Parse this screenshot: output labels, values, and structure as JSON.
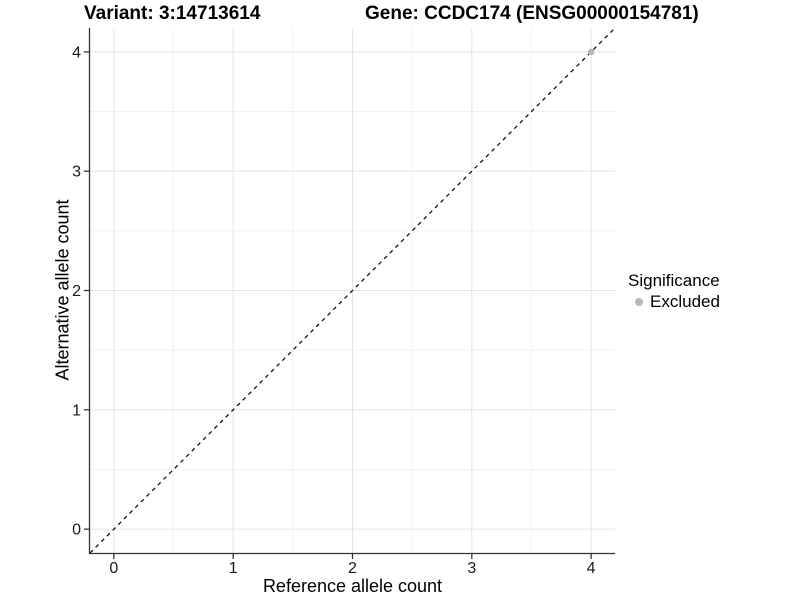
{
  "titles": {
    "variant": "Variant: 3:14713614",
    "gene": "Gene: CCDC174 (ENSG00000154781)"
  },
  "axes": {
    "x_label": "Reference allele count",
    "y_label": "Alternative allele count",
    "x_tick_labels": [
      "0",
      "1",
      "2",
      "3",
      "4"
    ],
    "y_tick_labels": [
      "0",
      "1",
      "2",
      "3",
      "4"
    ]
  },
  "legend": {
    "title": "Significance",
    "items": [
      {
        "label": "Excluded",
        "color": "#b8b8b8"
      }
    ]
  },
  "colors": {
    "background": "#ffffff",
    "panel_background": "#ffffff",
    "grid_major": "#e4e4e4",
    "grid_minor": "#f2f2f2",
    "axis_line": "#333333",
    "tick_mark": "#333333",
    "tick_text": "#1a1a1a",
    "point": "#b8b8b8",
    "reference_line": "#000000"
  },
  "chart_data": {
    "type": "scatter",
    "title": "Variant: 3:14713614   Gene: CCDC174 (ENSG00000154781)",
    "xlabel": "Reference allele count",
    "ylabel": "Alternative allele count",
    "xlim": [
      -0.2,
      4.2
    ],
    "ylim": [
      -0.2,
      4.2
    ],
    "x_ticks": [
      0,
      1,
      2,
      3,
      4
    ],
    "y_ticks": [
      0,
      1,
      2,
      3,
      4
    ],
    "grid": "major gridlines at integers, minor gridlines at half-integers, white panel",
    "legend_position": "right",
    "series": [
      {
        "name": "Excluded",
        "color": "#b8b8b8",
        "points": [
          [
            4,
            4
          ]
        ]
      }
    ],
    "reference_line": {
      "equation": "y = x",
      "style": "dashed",
      "color": "#000000",
      "extent": "panel corner to corner"
    }
  }
}
